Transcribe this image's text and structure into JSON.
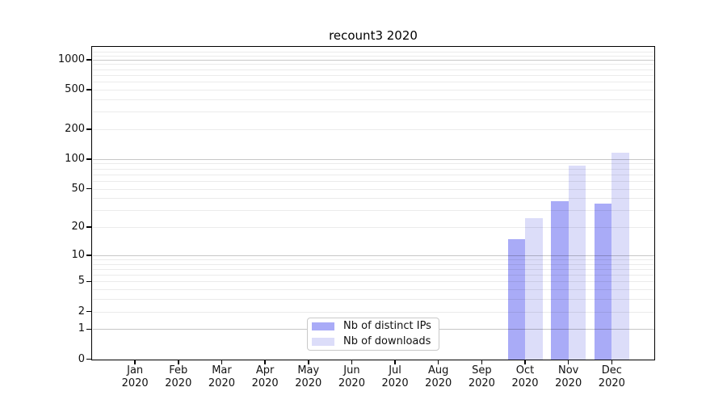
{
  "title": "recount3 2020",
  "chart_data": {
    "type": "bar",
    "title": "recount3 2020",
    "y_scale": "symlog (t = ln(1+y))",
    "grid": "horizontal major+minor, decades emphasized",
    "legend_position": "inside bottom-center",
    "y_axis": {
      "ticks": [
        0,
        1,
        2,
        5,
        10,
        20,
        50,
        100,
        200,
        500,
        1000
      ],
      "range": [
        0,
        1300
      ]
    },
    "x_axis": {
      "months": [
        "Jan",
        "Feb",
        "Mar",
        "Apr",
        "May",
        "Jun",
        "Jul",
        "Aug",
        "Sep",
        "Oct",
        "Nov",
        "Dec"
      ],
      "year": "2020"
    },
    "series": [
      {
        "name": "Nb of distinct IPs",
        "key": "distinct-ips",
        "color": "#a9abf7",
        "values": [
          null,
          null,
          null,
          null,
          null,
          null,
          null,
          null,
          null,
          15,
          37,
          35
        ]
      },
      {
        "name": "Nb of downloads",
        "key": "downloads",
        "color": "#dcddf9",
        "values": [
          null,
          null,
          null,
          null,
          null,
          null,
          null,
          null,
          null,
          25,
          86,
          115
        ]
      }
    ]
  }
}
